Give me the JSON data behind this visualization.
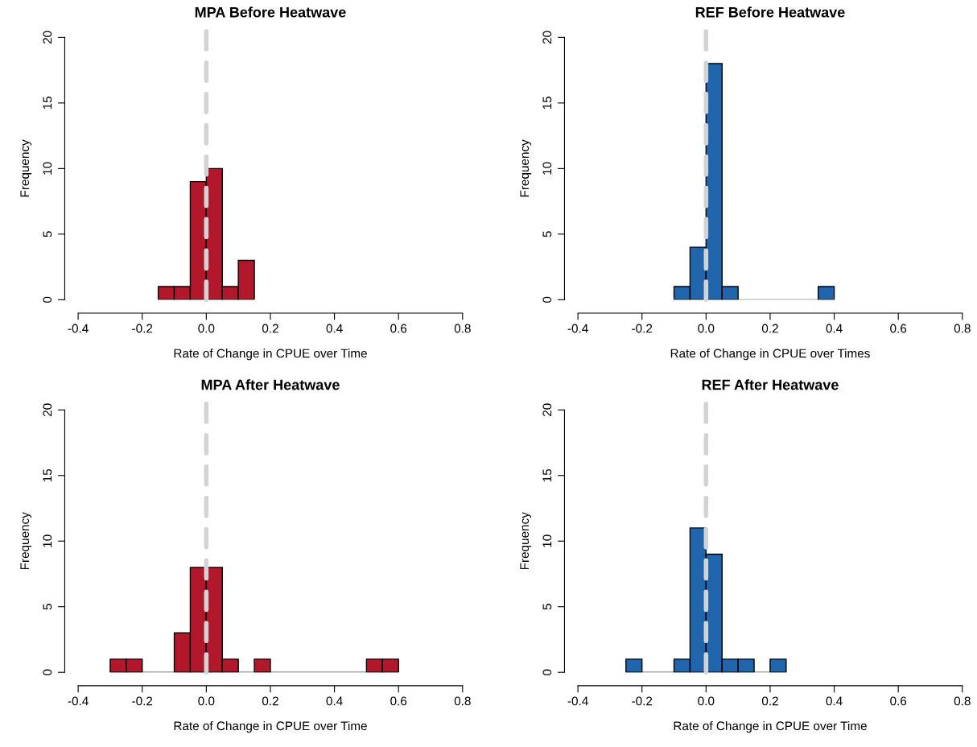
{
  "chart_data": [
    {
      "type": "histogram",
      "title": "MPA Before Heatwave",
      "xlabel": "Rate of Change in CPUE over Time",
      "ylabel": "Frequency",
      "color": "#b2182b",
      "bins": [
        -0.15,
        -0.1,
        -0.05,
        0,
        0.05,
        0.1,
        0.15
      ],
      "values": [
        1,
        1,
        9,
        10,
        1,
        3
      ],
      "xlim": [
        -0.4,
        0.8
      ],
      "xticks": [
        {
          "value": -0.4,
          "label": "-0.4"
        },
        {
          "value": -0.2,
          "label": "-0.2"
        },
        {
          "value": 0,
          "label": "0.0"
        },
        {
          "value": 0.2,
          "label": "0.2"
        },
        {
          "value": 0.4,
          "label": "0.4"
        },
        {
          "value": 0.6,
          "label": "0.6"
        },
        {
          "value": 0.8,
          "label": "0.8"
        }
      ],
      "ylim": [
        0,
        20
      ],
      "yticks": [
        0,
        5,
        10,
        15,
        20
      ],
      "ref_lines": [
        {
          "axis": "x",
          "value": 0,
          "color": "#d3d3d3",
          "line_style": "dashed"
        }
      ]
    },
    {
      "type": "histogram",
      "title": "REF Before Heatwave",
      "xlabel": "Rate of Change in CPUE over Times",
      "ylabel": "Frequency",
      "color": "#2166ac",
      "bins": [
        -0.1,
        -0.05,
        0,
        0.05,
        0.1,
        0.15,
        0.2,
        0.25,
        0.3,
        0.35,
        0.4
      ],
      "values": [
        1,
        4,
        18,
        1,
        0,
        0,
        0,
        0,
        0,
        1
      ],
      "xlim": [
        -0.4,
        0.8
      ],
      "xticks": [
        {
          "value": -0.4,
          "label": "-0.4"
        },
        {
          "value": -0.2,
          "label": "-0.2"
        },
        {
          "value": 0,
          "label": "0.0"
        },
        {
          "value": 0.2,
          "label": "0.2"
        },
        {
          "value": 0.4,
          "label": "0.4"
        },
        {
          "value": 0.6,
          "label": "0.6"
        },
        {
          "value": 0.8,
          "label": "0.8"
        }
      ],
      "ylim": [
        0,
        20
      ],
      "yticks": [
        0,
        5,
        10,
        15,
        20
      ],
      "ref_lines": [
        {
          "axis": "x",
          "value": 0,
          "color": "#d3d3d3",
          "line_style": "dashed"
        }
      ]
    },
    {
      "type": "histogram",
      "title": "MPA After Heatwave",
      "xlabel": "Rate of Change in CPUE over Time",
      "ylabel": "Frequency",
      "color": "#b2182b",
      "bins": [
        -0.3,
        -0.25,
        -0.2,
        -0.15,
        -0.1,
        -0.05,
        0,
        0.05,
        0.1,
        0.15,
        0.2,
        0.25,
        0.3,
        0.35,
        0.4,
        0.45,
        0.5,
        0.55,
        0.6
      ],
      "values": [
        1,
        1,
        0,
        0,
        3,
        8,
        8,
        1,
        0,
        1,
        0,
        0,
        0,
        0,
        0,
        0,
        1,
        1
      ],
      "xlim": [
        -0.4,
        0.8
      ],
      "xticks": [
        {
          "value": -0.4,
          "label": "-0.4"
        },
        {
          "value": -0.2,
          "label": "-0.2"
        },
        {
          "value": 0,
          "label": "0.0"
        },
        {
          "value": 0.2,
          "label": "0.2"
        },
        {
          "value": 0.4,
          "label": "0.4"
        },
        {
          "value": 0.6,
          "label": "0.6"
        },
        {
          "value": 0.8,
          "label": "0.8"
        }
      ],
      "ylim": [
        0,
        20
      ],
      "yticks": [
        0,
        5,
        10,
        15,
        20
      ],
      "ref_lines": [
        {
          "axis": "x",
          "value": 0,
          "color": "#d3d3d3",
          "line_style": "dashed"
        }
      ]
    },
    {
      "type": "histogram",
      "title": "REF After Heatwave",
      "xlabel": "Rate of Change in CPUE over Time",
      "ylabel": "Frequency",
      "color": "#2166ac",
      "bins": [
        -0.25,
        -0.2,
        -0.15,
        -0.1,
        -0.05,
        0,
        0.05,
        0.1,
        0.15,
        0.2,
        0.25
      ],
      "values": [
        1,
        0,
        0,
        1,
        11,
        9,
        1,
        1,
        0,
        1
      ],
      "xlim": [
        -0.4,
        0.8
      ],
      "xticks": [
        {
          "value": -0.4,
          "label": "-0.4"
        },
        {
          "value": -0.2,
          "label": "-0.2"
        },
        {
          "value": 0,
          "label": "0.0"
        },
        {
          "value": 0.2,
          "label": "0.2"
        },
        {
          "value": 0.4,
          "label": "0.4"
        },
        {
          "value": 0.6,
          "label": "0.6"
        },
        {
          "value": 0.8,
          "label": "0.8"
        }
      ],
      "ylim": [
        0,
        20
      ],
      "yticks": [
        0,
        5,
        10,
        15,
        20
      ],
      "ref_lines": [
        {
          "axis": "x",
          "value": 0,
          "color": "#d3d3d3",
          "line_style": "dashed"
        }
      ]
    }
  ]
}
